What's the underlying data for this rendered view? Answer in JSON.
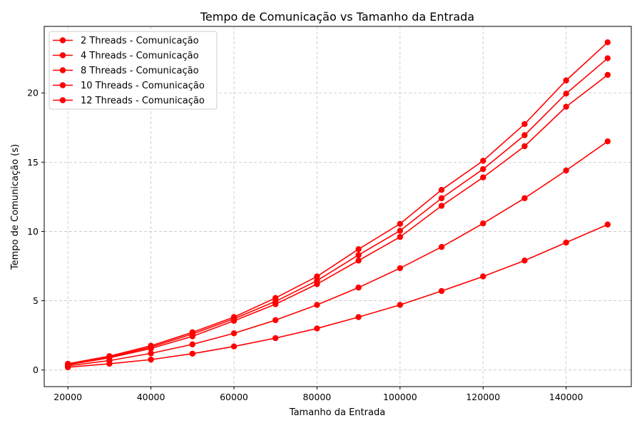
{
  "chart_data": {
    "type": "line",
    "title": "Tempo de Comunicação vs Tamanho da Entrada",
    "xlabel": "Tamanho da Entrada",
    "ylabel": "Tempo de Comunicação (s)",
    "x": [
      20000,
      30000,
      40000,
      50000,
      60000,
      70000,
      80000,
      90000,
      100000,
      110000,
      120000,
      130000,
      140000,
      150000
    ],
    "xlim": [
      14300,
      155700
    ],
    "ylim": [
      -1.2,
      24.8
    ],
    "xticks": [
      20000,
      40000,
      60000,
      80000,
      100000,
      120000,
      140000
    ],
    "xtick_labels": [
      "20000",
      "40000",
      "60000",
      "80000",
      "100000",
      "120000",
      "140000"
    ],
    "yticks": [
      0,
      5,
      10,
      15,
      20
    ],
    "ytick_labels": [
      "0",
      "5",
      "10",
      "15",
      "20"
    ],
    "grid": true,
    "legend_position": "top-left",
    "color": "#ff0000",
    "series": [
      {
        "name": "2 Threads - Comunicação",
        "values": [
          0.2,
          0.45,
          0.75,
          1.18,
          1.7,
          2.3,
          3.0,
          3.82,
          4.7,
          5.7,
          6.75,
          7.9,
          9.2,
          10.5
        ]
      },
      {
        "name": "4 Threads - Comunicação",
        "values": [
          0.3,
          0.68,
          1.2,
          1.85,
          2.65,
          3.6,
          4.7,
          5.95,
          7.35,
          8.88,
          10.58,
          12.4,
          14.4,
          16.5
        ]
      },
      {
        "name": "8 Threads - Comunicação",
        "values": [
          0.38,
          0.88,
          1.55,
          2.43,
          3.55,
          4.75,
          6.2,
          7.9,
          9.6,
          11.85,
          13.9,
          16.15,
          19.0,
          21.3
        ]
      },
      {
        "name": "10 Threads - Comunicação",
        "values": [
          0.4,
          0.93,
          1.65,
          2.6,
          3.7,
          4.95,
          6.45,
          8.3,
          10.05,
          12.4,
          14.5,
          16.95,
          19.95,
          22.5
        ]
      },
      {
        "name": "12 Threads - Comunicação",
        "values": [
          0.45,
          1.0,
          1.75,
          2.72,
          3.82,
          5.2,
          6.75,
          8.72,
          10.55,
          13.0,
          15.1,
          17.75,
          20.9,
          23.65
        ]
      }
    ]
  }
}
